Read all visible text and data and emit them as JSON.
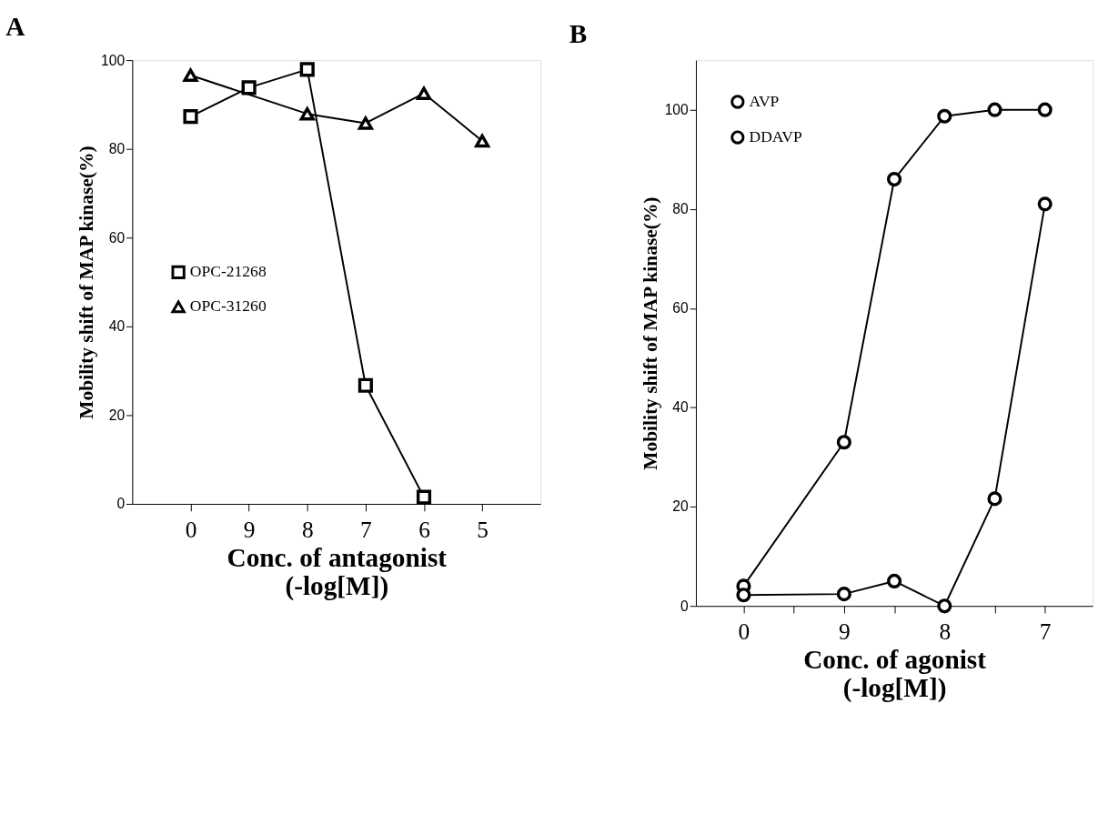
{
  "chart_data": [
    {
      "type": "line",
      "title": "A",
      "xlabel": "Conc. of antagonist\n(-log[M])",
      "ylabel": "Mobility shift of MAP kinase(%)",
      "categories": [
        "0",
        "9",
        "8",
        "7",
        "6",
        "5"
      ],
      "ylim": [
        0,
        100
      ],
      "yticks": [
        0,
        20,
        40,
        60,
        80,
        100
      ],
      "series": [
        {
          "name": "OPC-21268",
          "color": "#000000",
          "marker": "square",
          "values": [
            87.3,
            93.8,
            97.9,
            26.7,
            1.5,
            null
          ]
        },
        {
          "name": "OPC-31260",
          "color": "#000000",
          "marker": "triangle",
          "values": [
            96.6,
            null,
            87.9,
            85.8,
            92.5,
            81.8
          ]
        }
      ],
      "grid": false,
      "legend": "left",
      "line_style": "solid"
    },
    {
      "type": "line",
      "title": "B",
      "xlabel": "Conc. of agonist\n(-log[M])",
      "ylabel": "Mobility shift of MAP kinase(%)",
      "categories": [
        "0",
        null,
        "9",
        null,
        "8",
        null,
        "7"
      ],
      "ylim": [
        0,
        110
      ],
      "yticks": [
        0,
        20,
        40,
        60,
        80,
        100
      ],
      "series": [
        {
          "name": "AVP",
          "color": "#000000",
          "marker": "circle",
          "values": [
            4,
            null,
            33,
            86,
            98.7,
            100,
            100
          ]
        },
        {
          "name": "DDAVP",
          "color": "#000000",
          "marker": "circle",
          "values": [
            2.2,
            null,
            2.4,
            5,
            0,
            21.6,
            81
          ]
        }
      ],
      "grid": false,
      "legend": "top left",
      "line_style": "solid"
    }
  ]
}
